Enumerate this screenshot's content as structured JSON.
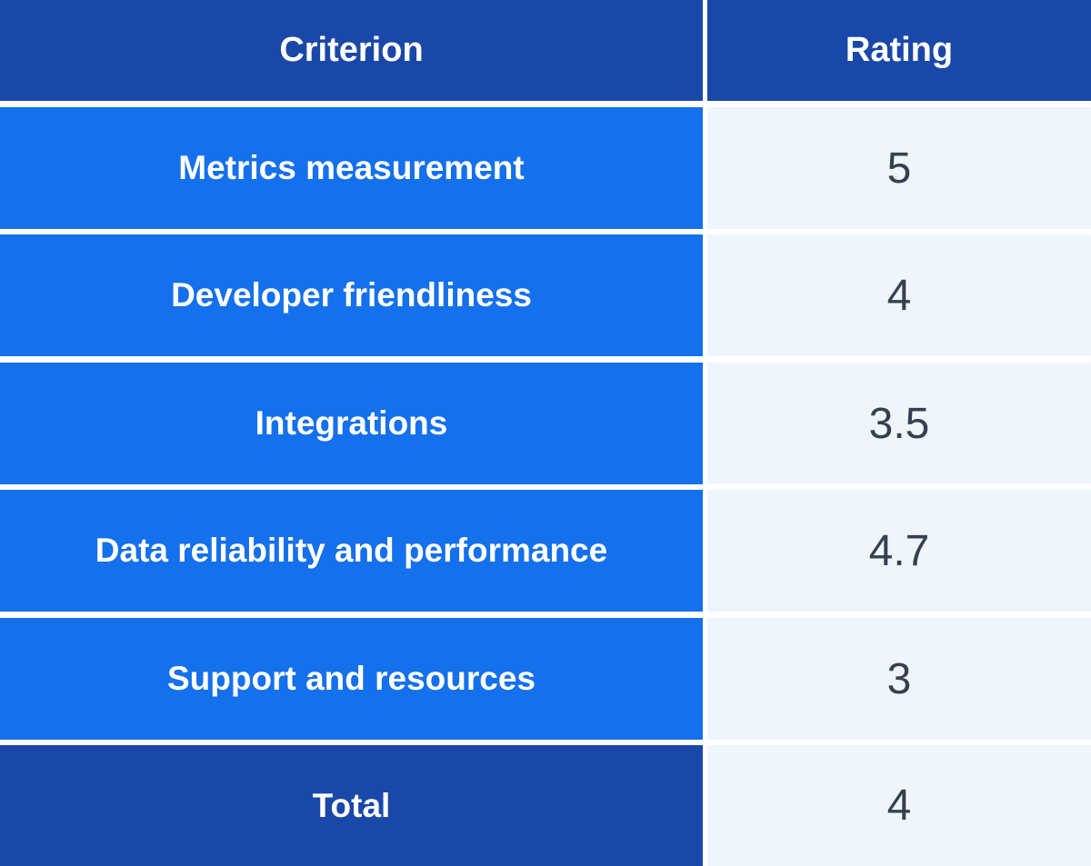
{
  "header": {
    "criterion_label": "Criterion",
    "rating_label": "Rating"
  },
  "rows": [
    {
      "criterion": "Metrics measurement",
      "rating": "5"
    },
    {
      "criterion": "Developer friendliness",
      "rating": "4"
    },
    {
      "criterion": "Integrations",
      "rating": "3.5"
    },
    {
      "criterion": "Data reliability and performance",
      "rating": "4.7"
    },
    {
      "criterion": "Support and resources",
      "rating": "3"
    }
  ],
  "total": {
    "label": "Total",
    "rating": "4"
  },
  "colors": {
    "header_bg": "#1a48a8",
    "criterion_bg": "#1570eb",
    "rating_bg": "#eef6fc",
    "rating_text": "#36404d",
    "divider": "#ffffff"
  }
}
